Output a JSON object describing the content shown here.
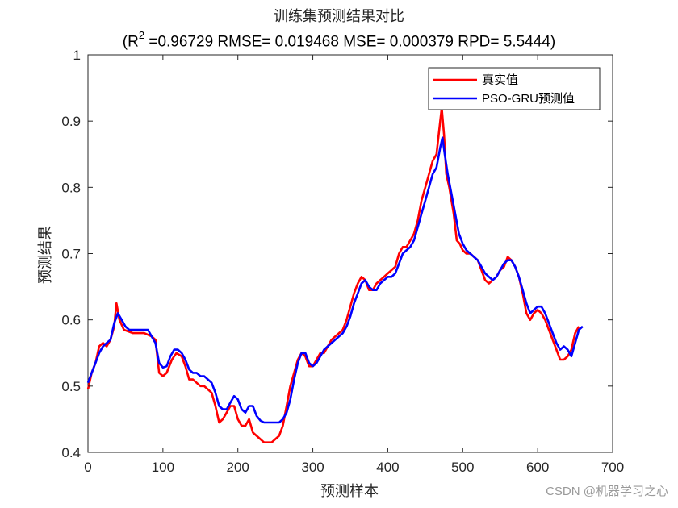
{
  "chart_data": {
    "type": "line",
    "title": "训练集预测结果对比",
    "subtitle_prefix": "(R",
    "subtitle_sup": "2",
    "subtitle_rest": " =0.96729 RMSE= 0.019468 MSE= 0.000379 RPD= 5.5444)",
    "xlabel": "预测样本",
    "ylabel": "预测结果",
    "xlim": [
      0,
      700
    ],
    "ylim": [
      0.4,
      1.0
    ],
    "xticks": [
      "0",
      "100",
      "200",
      "300",
      "400",
      "500",
      "600",
      "700"
    ],
    "yticks": [
      "0.4",
      "0.5",
      "0.6",
      "0.7",
      "0.8",
      "0.9",
      "1"
    ],
    "legend_position": "top-right",
    "series": [
      {
        "name": "真实值",
        "color": "#ff0000",
        "points": [
          [
            0,
            0.495
          ],
          [
            5,
            0.52
          ],
          [
            10,
            0.535
          ],
          [
            15,
            0.56
          ],
          [
            20,
            0.565
          ],
          [
            25,
            0.56
          ],
          [
            30,
            0.57
          ],
          [
            35,
            0.59
          ],
          [
            38,
            0.625
          ],
          [
            42,
            0.6
          ],
          [
            48,
            0.585
          ],
          [
            60,
            0.58
          ],
          [
            75,
            0.58
          ],
          [
            85,
            0.575
          ],
          [
            90,
            0.57
          ],
          [
            95,
            0.52
          ],
          [
            100,
            0.515
          ],
          [
            105,
            0.52
          ],
          [
            112,
            0.54
          ],
          [
            118,
            0.55
          ],
          [
            125,
            0.545
          ],
          [
            130,
            0.53
          ],
          [
            135,
            0.51
          ],
          [
            140,
            0.51
          ],
          [
            145,
            0.505
          ],
          [
            150,
            0.5
          ],
          [
            155,
            0.5
          ],
          [
            160,
            0.495
          ],
          [
            165,
            0.49
          ],
          [
            170,
            0.47
          ],
          [
            175,
            0.445
          ],
          [
            180,
            0.45
          ],
          [
            185,
            0.46
          ],
          [
            190,
            0.47
          ],
          [
            195,
            0.47
          ],
          [
            200,
            0.45
          ],
          [
            205,
            0.44
          ],
          [
            210,
            0.44
          ],
          [
            215,
            0.45
          ],
          [
            220,
            0.43
          ],
          [
            225,
            0.425
          ],
          [
            230,
            0.42
          ],
          [
            235,
            0.415
          ],
          [
            240,
            0.415
          ],
          [
            245,
            0.415
          ],
          [
            250,
            0.42
          ],
          [
            255,
            0.425
          ],
          [
            260,
            0.44
          ],
          [
            265,
            0.47
          ],
          [
            270,
            0.5
          ],
          [
            275,
            0.52
          ],
          [
            280,
            0.54
          ],
          [
            285,
            0.55
          ],
          [
            290,
            0.545
          ],
          [
            295,
            0.53
          ],
          [
            300,
            0.53
          ],
          [
            305,
            0.54
          ],
          [
            310,
            0.55
          ],
          [
            315,
            0.55
          ],
          [
            320,
            0.56
          ],
          [
            325,
            0.57
          ],
          [
            330,
            0.575
          ],
          [
            335,
            0.58
          ],
          [
            340,
            0.585
          ],
          [
            345,
            0.6
          ],
          [
            350,
            0.62
          ],
          [
            355,
            0.64
          ],
          [
            360,
            0.655
          ],
          [
            365,
            0.665
          ],
          [
            370,
            0.66
          ],
          [
            375,
            0.645
          ],
          [
            380,
            0.645
          ],
          [
            385,
            0.655
          ],
          [
            390,
            0.66
          ],
          [
            395,
            0.665
          ],
          [
            400,
            0.67
          ],
          [
            405,
            0.675
          ],
          [
            410,
            0.68
          ],
          [
            415,
            0.7
          ],
          [
            420,
            0.71
          ],
          [
            425,
            0.71
          ],
          [
            430,
            0.72
          ],
          [
            435,
            0.73
          ],
          [
            440,
            0.75
          ],
          [
            445,
            0.78
          ],
          [
            450,
            0.8
          ],
          [
            455,
            0.82
          ],
          [
            460,
            0.84
          ],
          [
            465,
            0.85
          ],
          [
            470,
            0.9
          ],
          [
            472,
            0.92
          ],
          [
            475,
            0.88
          ],
          [
            478,
            0.82
          ],
          [
            482,
            0.8
          ],
          [
            488,
            0.76
          ],
          [
            492,
            0.72
          ],
          [
            496,
            0.715
          ],
          [
            500,
            0.705
          ],
          [
            505,
            0.7
          ],
          [
            510,
            0.7
          ],
          [
            515,
            0.695
          ],
          [
            520,
            0.69
          ],
          [
            525,
            0.675
          ],
          [
            530,
            0.66
          ],
          [
            535,
            0.655
          ],
          [
            540,
            0.66
          ],
          [
            545,
            0.665
          ],
          [
            550,
            0.675
          ],
          [
            555,
            0.68
          ],
          [
            560,
            0.695
          ],
          [
            565,
            0.69
          ],
          [
            570,
            0.68
          ],
          [
            575,
            0.665
          ],
          [
            580,
            0.64
          ],
          [
            585,
            0.61
          ],
          [
            590,
            0.6
          ],
          [
            595,
            0.61
          ],
          [
            600,
            0.615
          ],
          [
            605,
            0.61
          ],
          [
            610,
            0.6
          ],
          [
            615,
            0.585
          ],
          [
            620,
            0.57
          ],
          [
            625,
            0.555
          ],
          [
            630,
            0.54
          ],
          [
            635,
            0.54
          ],
          [
            640,
            0.545
          ],
          [
            645,
            0.555
          ],
          [
            650,
            0.58
          ],
          [
            655,
            0.59
          ]
        ]
      },
      {
        "name": "PSO-GRU预测值",
        "color": "#0000ff",
        "points": [
          [
            0,
            0.505
          ],
          [
            5,
            0.52
          ],
          [
            10,
            0.535
          ],
          [
            15,
            0.55
          ],
          [
            20,
            0.56
          ],
          [
            25,
            0.565
          ],
          [
            30,
            0.57
          ],
          [
            35,
            0.595
          ],
          [
            40,
            0.61
          ],
          [
            45,
            0.6
          ],
          [
            50,
            0.59
          ],
          [
            55,
            0.585
          ],
          [
            65,
            0.585
          ],
          [
            75,
            0.585
          ],
          [
            80,
            0.585
          ],
          [
            85,
            0.575
          ],
          [
            90,
            0.565
          ],
          [
            95,
            0.535
          ],
          [
            100,
            0.528
          ],
          [
            105,
            0.53
          ],
          [
            110,
            0.545
          ],
          [
            115,
            0.555
          ],
          [
            120,
            0.555
          ],
          [
            125,
            0.55
          ],
          [
            130,
            0.54
          ],
          [
            135,
            0.525
          ],
          [
            140,
            0.52
          ],
          [
            145,
            0.52
          ],
          [
            150,
            0.515
          ],
          [
            155,
            0.515
          ],
          [
            160,
            0.51
          ],
          [
            165,
            0.505
          ],
          [
            170,
            0.49
          ],
          [
            175,
            0.47
          ],
          [
            180,
            0.465
          ],
          [
            185,
            0.465
          ],
          [
            190,
            0.475
          ],
          [
            195,
            0.485
          ],
          [
            200,
            0.48
          ],
          [
            205,
            0.465
          ],
          [
            210,
            0.46
          ],
          [
            215,
            0.47
          ],
          [
            220,
            0.47
          ],
          [
            225,
            0.455
          ],
          [
            230,
            0.448
          ],
          [
            235,
            0.445
          ],
          [
            240,
            0.445
          ],
          [
            245,
            0.445
          ],
          [
            250,
            0.445
          ],
          [
            255,
            0.445
          ],
          [
            260,
            0.45
          ],
          [
            265,
            0.46
          ],
          [
            270,
            0.48
          ],
          [
            275,
            0.51
          ],
          [
            280,
            0.535
          ],
          [
            285,
            0.55
          ],
          [
            290,
            0.55
          ],
          [
            295,
            0.535
          ],
          [
            300,
            0.53
          ],
          [
            305,
            0.535
          ],
          [
            310,
            0.545
          ],
          [
            315,
            0.555
          ],
          [
            320,
            0.56
          ],
          [
            325,
            0.565
          ],
          [
            330,
            0.57
          ],
          [
            335,
            0.575
          ],
          [
            340,
            0.58
          ],
          [
            345,
            0.59
          ],
          [
            350,
            0.605
          ],
          [
            355,
            0.625
          ],
          [
            360,
            0.64
          ],
          [
            365,
            0.655
          ],
          [
            370,
            0.66
          ],
          [
            375,
            0.65
          ],
          [
            380,
            0.645
          ],
          [
            385,
            0.645
          ],
          [
            390,
            0.655
          ],
          [
            395,
            0.66
          ],
          [
            400,
            0.665
          ],
          [
            405,
            0.665
          ],
          [
            410,
            0.67
          ],
          [
            415,
            0.685
          ],
          [
            420,
            0.7
          ],
          [
            425,
            0.705
          ],
          [
            430,
            0.71
          ],
          [
            435,
            0.72
          ],
          [
            440,
            0.74
          ],
          [
            445,
            0.76
          ],
          [
            450,
            0.78
          ],
          [
            455,
            0.8
          ],
          [
            460,
            0.82
          ],
          [
            465,
            0.83
          ],
          [
            470,
            0.86
          ],
          [
            473,
            0.875
          ],
          [
            476,
            0.85
          ],
          [
            480,
            0.82
          ],
          [
            485,
            0.79
          ],
          [
            490,
            0.76
          ],
          [
            495,
            0.73
          ],
          [
            500,
            0.715
          ],
          [
            505,
            0.705
          ],
          [
            510,
            0.7
          ],
          [
            515,
            0.695
          ],
          [
            520,
            0.69
          ],
          [
            525,
            0.68
          ],
          [
            530,
            0.67
          ],
          [
            535,
            0.665
          ],
          [
            540,
            0.66
          ],
          [
            545,
            0.665
          ],
          [
            550,
            0.675
          ],
          [
            555,
            0.685
          ],
          [
            560,
            0.69
          ],
          [
            565,
            0.69
          ],
          [
            570,
            0.68
          ],
          [
            575,
            0.665
          ],
          [
            580,
            0.645
          ],
          [
            585,
            0.625
          ],
          [
            590,
            0.61
          ],
          [
            595,
            0.615
          ],
          [
            600,
            0.62
          ],
          [
            605,
            0.62
          ],
          [
            610,
            0.61
          ],
          [
            615,
            0.595
          ],
          [
            620,
            0.58
          ],
          [
            625,
            0.565
          ],
          [
            630,
            0.555
          ],
          [
            635,
            0.56
          ],
          [
            640,
            0.555
          ],
          [
            645,
            0.545
          ],
          [
            650,
            0.565
          ],
          [
            655,
            0.585
          ],
          [
            660,
            0.59
          ]
        ]
      }
    ]
  },
  "watermark": "CSDN @机器学习之心"
}
